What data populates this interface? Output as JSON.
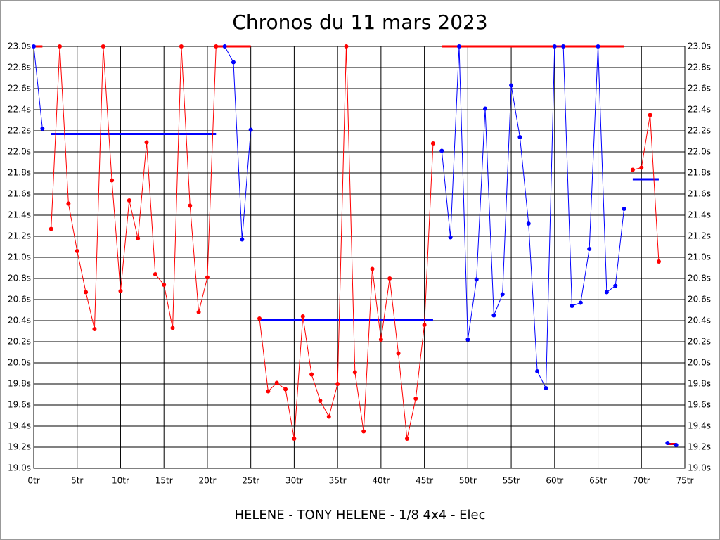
{
  "chart_data": {
    "type": "line",
    "title": "Chronos du 11 mars 2023",
    "subtitle": "HELENE - TONY HELENE - 1/8 4x4 - Elec",
    "x": [
      0,
      1,
      2,
      3,
      4,
      5,
      6,
      7,
      8,
      9,
      10,
      11,
      12,
      13,
      14,
      15,
      16,
      17,
      18,
      19,
      20,
      21,
      22,
      23,
      24,
      25,
      26,
      27,
      28,
      29,
      30,
      31,
      32,
      33,
      34,
      35,
      36,
      37,
      38,
      39,
      40,
      41,
      42,
      43,
      44,
      45,
      46,
      47,
      48,
      49,
      50,
      51,
      52,
      53,
      54,
      55,
      56,
      57,
      58,
      59,
      60,
      61,
      62,
      63,
      64,
      65,
      66,
      67,
      68,
      69,
      70,
      71,
      72,
      73,
      74
    ],
    "series": [
      {
        "name": "HELENE",
        "color": "#ff0000",
        "values": [
          null,
          null,
          21.27,
          23.0,
          21.51,
          21.06,
          20.67,
          20.32,
          23.0,
          21.73,
          20.68,
          21.54,
          21.18,
          22.09,
          20.84,
          20.74,
          20.33,
          23.0,
          21.49,
          20.48,
          20.81,
          23.0,
          null,
          null,
          null,
          null,
          20.42,
          19.73,
          19.81,
          19.75,
          19.28,
          20.44,
          19.89,
          19.64,
          19.49,
          19.8,
          23.0,
          19.91,
          19.35,
          20.89,
          20.22,
          20.8,
          20.09,
          19.28,
          19.66,
          20.36,
          22.08,
          null,
          null,
          null,
          null,
          null,
          null,
          null,
          null,
          null,
          null,
          null,
          null,
          null,
          null,
          null,
          null,
          null,
          null,
          null,
          null,
          null,
          null,
          21.83,
          21.85,
          22.35,
          20.96,
          null,
          null
        ]
      },
      {
        "name": "TONY HELENE",
        "color": "#0000ff",
        "values": [
          23.0,
          22.22,
          null,
          null,
          null,
          null,
          null,
          null,
          null,
          null,
          null,
          null,
          null,
          null,
          null,
          null,
          null,
          null,
          null,
          null,
          null,
          null,
          23.0,
          22.85,
          21.17,
          22.21,
          null,
          null,
          null,
          null,
          null,
          null,
          null,
          null,
          null,
          null,
          null,
          null,
          null,
          null,
          null,
          null,
          null,
          null,
          null,
          null,
          null,
          22.01,
          21.19,
          23.0,
          20.22,
          20.79,
          22.41,
          20.45,
          20.65,
          22.63,
          22.14,
          21.32,
          19.92,
          19.76,
          23.0,
          23.0,
          20.54,
          20.57,
          21.08,
          23.0,
          20.67,
          20.73,
          21.46,
          null,
          null,
          null,
          null,
          19.24,
          19.22
        ]
      }
    ],
    "averages": [
      {
        "start": 0,
        "end": 1,
        "value": 23.0,
        "color": "#ff0000"
      },
      {
        "start": 2,
        "end": 21,
        "value": 22.17,
        "color": "#0000ff"
      },
      {
        "start": 21,
        "end": 25,
        "value": 23.0,
        "color": "#ff0000"
      },
      {
        "start": 26,
        "end": 46,
        "value": 20.41,
        "color": "#0000ff"
      },
      {
        "start": 47,
        "end": 68,
        "value": 23.0,
        "color": "#ff0000"
      },
      {
        "start": 69,
        "end": 72,
        "value": 21.74,
        "color": "#0000ff"
      },
      {
        "start": 73,
        "end": 74,
        "value": 19.23,
        "color": "#ff0000"
      }
    ],
    "xlim": [
      0,
      75
    ],
    "xticks": [
      {
        "value": 0,
        "label": "0tr"
      },
      {
        "value": 5,
        "label": "5tr"
      },
      {
        "value": 10,
        "label": "10tr"
      },
      {
        "value": 15,
        "label": "15tr"
      },
      {
        "value": 20,
        "label": "20tr"
      },
      {
        "value": 25,
        "label": "25tr"
      },
      {
        "value": 30,
        "label": "30tr"
      },
      {
        "value": 35,
        "label": "35tr"
      },
      {
        "value": 40,
        "label": "40tr"
      },
      {
        "value": 45,
        "label": "45tr"
      },
      {
        "value": 50,
        "label": "50tr"
      },
      {
        "value": 55,
        "label": "55tr"
      },
      {
        "value": 60,
        "label": "60tr"
      },
      {
        "value": 65,
        "label": "65tr"
      },
      {
        "value": 70,
        "label": "70tr"
      },
      {
        "value": 75,
        "label": "75tr"
      }
    ],
    "ylim": [
      19.0,
      23.0
    ],
    "yticks": [
      {
        "value": 19.0,
        "label": "19.0s"
      },
      {
        "value": 19.2,
        "label": "19.2s"
      },
      {
        "value": 19.4,
        "label": "19.4s"
      },
      {
        "value": 19.6,
        "label": "19.6s"
      },
      {
        "value": 19.8,
        "label": "19.8s"
      },
      {
        "value": 20.0,
        "label": "20.0s"
      },
      {
        "value": 20.2,
        "label": "20.2s"
      },
      {
        "value": 20.4,
        "label": "20.4s"
      },
      {
        "value": 20.6,
        "label": "20.6s"
      },
      {
        "value": 20.8,
        "label": "20.8s"
      },
      {
        "value": 21.0,
        "label": "21.0s"
      },
      {
        "value": 21.2,
        "label": "21.2s"
      },
      {
        "value": 21.4,
        "label": "21.4s"
      },
      {
        "value": 21.6,
        "label": "21.6s"
      },
      {
        "value": 21.8,
        "label": "21.8s"
      },
      {
        "value": 22.0,
        "label": "22.0s"
      },
      {
        "value": 22.2,
        "label": "22.2s"
      },
      {
        "value": 22.4,
        "label": "22.4s"
      },
      {
        "value": 22.6,
        "label": "22.6s"
      },
      {
        "value": 22.8,
        "label": "22.8s"
      },
      {
        "value": 23.0,
        "label": "23.0s"
      }
    ],
    "grid": true
  }
}
